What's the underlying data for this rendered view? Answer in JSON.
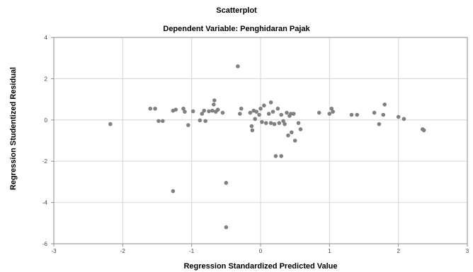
{
  "chart_data": {
    "type": "scatter",
    "title": "Scatterplot",
    "subtitle": "Dependent Variable: Penghidaran Pajak",
    "xlabel": "Regression Standardized Predicted Value",
    "ylabel": "Regression Studentized Residual",
    "xlim": [
      -3,
      3
    ],
    "ylim": [
      -6,
      4
    ],
    "xticks": [
      -3,
      -2,
      -1,
      0,
      1,
      2,
      3
    ],
    "yticks": [
      -6,
      -4,
      -2,
      0,
      2,
      4
    ],
    "grid": true,
    "point_color": "#808080",
    "points": [
      {
        "x": -2.18,
        "y": -0.2
      },
      {
        "x": -1.6,
        "y": 0.55
      },
      {
        "x": -1.53,
        "y": 0.55
      },
      {
        "x": -1.48,
        "y": -0.05
      },
      {
        "x": -1.42,
        "y": -0.05
      },
      {
        "x": -1.27,
        "y": 0.45
      },
      {
        "x": -1.23,
        "y": 0.5
      },
      {
        "x": -1.12,
        "y": 0.55
      },
      {
        "x": -1.1,
        "y": 0.4
      },
      {
        "x": -1.05,
        "y": -0.25
      },
      {
        "x": -1.27,
        "y": -3.45
      },
      {
        "x": -0.98,
        "y": 0.42
      },
      {
        "x": -0.88,
        "y": -0.02
      },
      {
        "x": -0.85,
        "y": 0.3
      },
      {
        "x": -0.82,
        "y": 0.45
      },
      {
        "x": -0.8,
        "y": -0.05
      },
      {
        "x": -0.75,
        "y": 0.42
      },
      {
        "x": -0.7,
        "y": 0.45
      },
      {
        "x": -0.68,
        "y": 0.75
      },
      {
        "x": -0.67,
        "y": 0.95
      },
      {
        "x": -0.65,
        "y": 0.4
      },
      {
        "x": -0.62,
        "y": 0.5
      },
      {
        "x": -0.55,
        "y": 0.35
      },
      {
        "x": -0.5,
        "y": -3.05
      },
      {
        "x": -0.5,
        "y": -5.2
      },
      {
        "x": -0.33,
        "y": 2.6
      },
      {
        "x": -0.3,
        "y": 0.3
      },
      {
        "x": -0.28,
        "y": 0.55
      },
      {
        "x": -0.15,
        "y": 0.35
      },
      {
        "x": -0.13,
        "y": -0.3
      },
      {
        "x": -0.12,
        "y": -0.5
      },
      {
        "x": -0.1,
        "y": 0.45
      },
      {
        "x": -0.08,
        "y": 0.05
      },
      {
        "x": -0.06,
        "y": 0.4
      },
      {
        "x": -0.02,
        "y": 0.25
      },
      {
        "x": 0.0,
        "y": 0.55
      },
      {
        "x": 0.02,
        "y": -0.1
      },
      {
        "x": 0.05,
        "y": 0.7
      },
      {
        "x": 0.08,
        "y": -0.15
      },
      {
        "x": 0.12,
        "y": 0.3
      },
      {
        "x": 0.15,
        "y": 0.85
      },
      {
        "x": 0.15,
        "y": -0.15
      },
      {
        "x": 0.18,
        "y": 0.4
      },
      {
        "x": 0.2,
        "y": -0.2
      },
      {
        "x": 0.22,
        "y": -1.75
      },
      {
        "x": 0.25,
        "y": 0.55
      },
      {
        "x": 0.27,
        "y": -0.15
      },
      {
        "x": 0.3,
        "y": 0.25
      },
      {
        "x": 0.3,
        "y": -1.75
      },
      {
        "x": 0.33,
        "y": -0.05
      },
      {
        "x": 0.35,
        "y": -0.2
      },
      {
        "x": 0.38,
        "y": 0.35
      },
      {
        "x": 0.4,
        "y": -0.75
      },
      {
        "x": 0.42,
        "y": 0.2
      },
      {
        "x": 0.44,
        "y": 0.3
      },
      {
        "x": 0.45,
        "y": -0.6
      },
      {
        "x": 0.48,
        "y": 0.3
      },
      {
        "x": 0.5,
        "y": -1.0
      },
      {
        "x": 0.55,
        "y": -0.15
      },
      {
        "x": 0.58,
        "y": -0.45
      },
      {
        "x": 0.85,
        "y": 0.35
      },
      {
        "x": 1.0,
        "y": 0.3
      },
      {
        "x": 1.03,
        "y": 0.55
      },
      {
        "x": 1.05,
        "y": 0.4
      },
      {
        "x": 1.32,
        "y": 0.25
      },
      {
        "x": 1.4,
        "y": 0.25
      },
      {
        "x": 1.65,
        "y": 0.35
      },
      {
        "x": 1.72,
        "y": -0.2
      },
      {
        "x": 1.78,
        "y": 0.25
      },
      {
        "x": 1.8,
        "y": 0.75
      },
      {
        "x": 2.0,
        "y": 0.15
      },
      {
        "x": 2.08,
        "y": 0.05
      },
      {
        "x": 2.35,
        "y": -0.45
      },
      {
        "x": 2.37,
        "y": -0.5
      }
    ]
  }
}
